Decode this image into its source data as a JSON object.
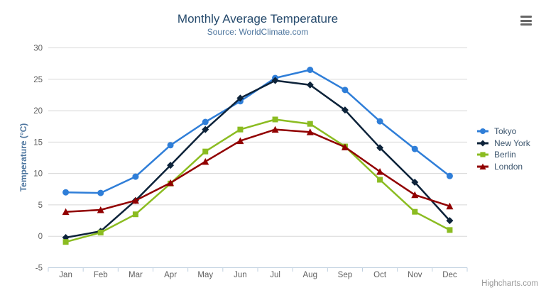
{
  "credits": "Highcharts.com",
  "icons": {
    "context_menu": "hamburger-icon"
  },
  "chart_data": {
    "type": "line",
    "title": "Monthly Average Temperature",
    "subtitle": "Source: WorldClimate.com",
    "xlabel": "",
    "ylabel": "Temperature (°C)",
    "categories": [
      "Jan",
      "Feb",
      "Mar",
      "Apr",
      "May",
      "Jun",
      "Jul",
      "Aug",
      "Sep",
      "Oct",
      "Nov",
      "Dec"
    ],
    "ylim": [
      -5,
      30
    ],
    "yticks": [
      -5,
      0,
      5,
      10,
      15,
      20,
      25,
      30
    ],
    "grid": true,
    "legend_position": "right-middle",
    "series": [
      {
        "name": "Tokyo",
        "color": "#2f7ed8",
        "marker": "circle",
        "values": [
          7.0,
          6.9,
          9.5,
          14.5,
          18.2,
          21.5,
          25.2,
          26.5,
          23.3,
          18.3,
          13.9,
          9.6
        ]
      },
      {
        "name": "New York",
        "color": "#0d233a",
        "marker": "diamond",
        "values": [
          -0.2,
          0.8,
          5.7,
          11.3,
          17.0,
          22.0,
          24.8,
          24.1,
          20.1,
          14.1,
          8.6,
          2.5
        ]
      },
      {
        "name": "Berlin",
        "color": "#8bbc21",
        "marker": "square",
        "values": [
          -0.9,
          0.6,
          3.5,
          8.4,
          13.5,
          17.0,
          18.6,
          17.9,
          14.3,
          9.0,
          3.9,
          1.0
        ]
      },
      {
        "name": "London",
        "color": "#910000",
        "marker": "triangle",
        "values": [
          3.9,
          4.2,
          5.7,
          8.5,
          11.9,
          15.2,
          17.0,
          16.6,
          14.2,
          10.3,
          6.6,
          4.8
        ]
      }
    ]
  }
}
